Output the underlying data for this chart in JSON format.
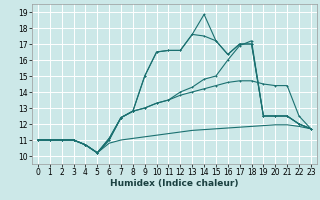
{
  "xlabel": "Humidex (Indice chaleur)",
  "bg_color": "#cce8e8",
  "grid_color": "#ffffff",
  "line_color": "#1a7070",
  "xlim": [
    -0.5,
    23.5
  ],
  "ylim": [
    9.5,
    19.5
  ],
  "xticks": [
    0,
    1,
    2,
    3,
    4,
    5,
    6,
    7,
    8,
    9,
    10,
    11,
    12,
    13,
    14,
    15,
    16,
    17,
    18,
    19,
    20,
    21,
    22,
    23
  ],
  "yticks": [
    10,
    11,
    12,
    13,
    14,
    15,
    16,
    17,
    18,
    19
  ],
  "lines": [
    [
      11.0,
      11.0,
      11.0,
      11.0,
      10.7,
      10.2,
      10.8,
      11.0,
      11.1,
      11.2,
      11.3,
      11.4,
      11.5,
      11.6,
      11.65,
      11.7,
      11.75,
      11.8,
      11.85,
      11.9,
      11.95,
      11.95,
      11.85,
      11.7
    ],
    [
      11.0,
      11.0,
      11.0,
      11.0,
      10.7,
      10.2,
      11.0,
      12.4,
      12.8,
      13.0,
      13.3,
      13.5,
      13.8,
      14.0,
      14.2,
      14.4,
      14.6,
      14.7,
      14.7,
      14.5,
      14.4,
      14.4,
      12.5,
      11.7
    ],
    [
      11.0,
      11.0,
      11.0,
      11.0,
      10.7,
      10.2,
      11.0,
      12.4,
      12.8,
      13.0,
      13.3,
      13.5,
      14.0,
      14.3,
      14.8,
      15.0,
      16.0,
      16.9,
      17.2,
      12.5,
      12.5,
      12.5,
      12.0,
      11.7
    ],
    [
      11.0,
      11.0,
      11.0,
      11.0,
      10.7,
      10.2,
      11.1,
      12.4,
      12.8,
      15.0,
      16.5,
      16.6,
      16.6,
      17.6,
      17.5,
      17.2,
      16.35,
      17.0,
      17.0,
      12.5,
      12.5,
      12.5,
      12.0,
      11.7
    ],
    [
      11.0,
      11.0,
      11.0,
      11.0,
      10.7,
      10.2,
      11.1,
      12.4,
      12.8,
      15.0,
      16.5,
      16.6,
      16.6,
      17.6,
      18.85,
      17.2,
      16.35,
      17.0,
      17.0,
      12.5,
      12.5,
      12.5,
      12.0,
      11.7
    ]
  ],
  "marker_lines": [
    1,
    2,
    3,
    4
  ],
  "lw": 0.8,
  "ms": 2.0,
  "xlabel_fontsize": 6.5,
  "tick_fontsize": 5.5
}
